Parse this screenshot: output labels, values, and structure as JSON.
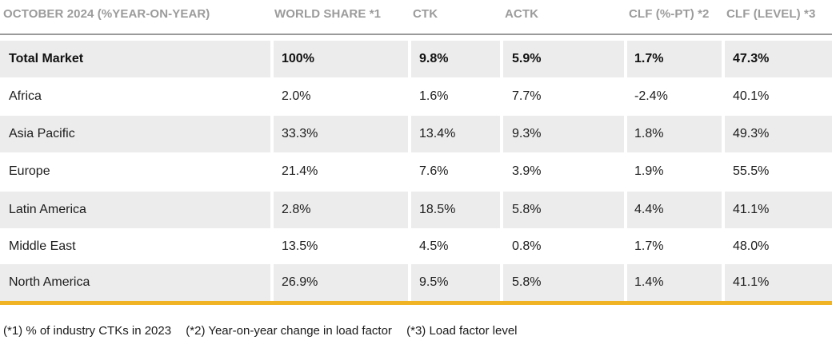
{
  "table": {
    "headers": [
      "OCTOBER 2024 (%YEAR-ON-YEAR)",
      "WORLD SHARE *1",
      "CTK",
      "ACTK",
      "CLF (%-PT) *2",
      "CLF (LEVEL) *3"
    ],
    "rows": [
      [
        "Total Market",
        "100%",
        "9.8%",
        "5.9%",
        "1.7%",
        "47.3%"
      ],
      [
        "Africa",
        "2.0%",
        "1.6%",
        "7.7%",
        "-2.4%",
        "40.1%"
      ],
      [
        "Asia Pacific",
        "33.3%",
        "13.4%",
        "9.3%",
        "1.8%",
        "49.3%"
      ],
      [
        "Europe",
        "21.4%",
        "7.6%",
        "3.9%",
        "1.9%",
        "55.5%"
      ],
      [
        "Latin America",
        "2.8%",
        "18.5%",
        "5.8%",
        "4.4%",
        "41.1%"
      ],
      [
        "Middle East",
        "13.5%",
        "4.5%",
        "0.8%",
        "1.7%",
        "48.0%"
      ],
      [
        "North America",
        "26.9%",
        "9.5%",
        "5.8%",
        "1.4%",
        "41.1%"
      ]
    ]
  },
  "footnotes": [
    "(*1) % of industry CTKs in 2023",
    "(*2) Year-on-year change in load factor",
    "(*3) Load factor level"
  ],
  "colors": {
    "header_text": "#9b9b9b",
    "row_shade": "#ececec",
    "accent_bar": "#f0b323"
  }
}
